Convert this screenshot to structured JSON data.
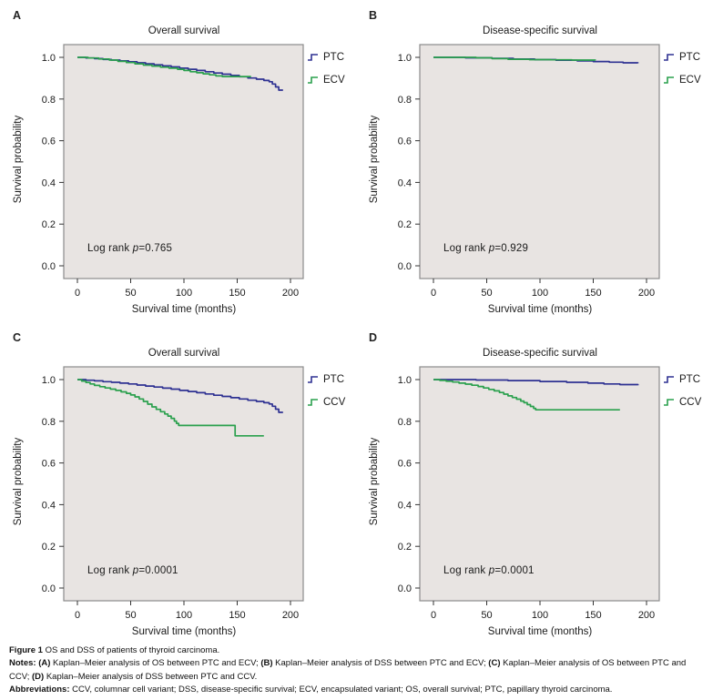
{
  "style": {
    "navy": "#2e3192",
    "green": "#2aa04d",
    "plot_bg": "#e8e4e2",
    "plot_border": "#8b8b8b",
    "tick_color": "#333333",
    "text_color": "#1a1a1a"
  },
  "chart_data": [
    {
      "type": "line",
      "subtype": "kaplan-meier-step",
      "panel_label": "A",
      "title": "Overall survival",
      "xlabel": "Survival time (months)",
      "ylabel": "Survival probability",
      "xlim": [
        0,
        210
      ],
      "ylim": [
        0,
        1.05
      ],
      "grid": false,
      "legend_position": "right",
      "x_ticks": [
        {
          "value": 0,
          "label": "0"
        },
        {
          "value": 50,
          "label": "50"
        },
        {
          "value": 100,
          "label": "100"
        },
        {
          "value": 150,
          "label": "150"
        },
        {
          "value": 200,
          "label": "200"
        }
      ],
      "y_ticks": [
        {
          "value": 1.0,
          "label": "1.0"
        },
        {
          "value": 0.8,
          "label": "0.8"
        },
        {
          "value": 0.6,
          "label": "0.6"
        },
        {
          "value": 0.4,
          "label": "0.4"
        },
        {
          "value": 0.2,
          "label": "0.2"
        },
        {
          "value": 0.0,
          "label": "0.0"
        }
      ],
      "log_rank": {
        "pre": "Log rank ",
        "p": "p",
        "value": "=0.765"
      },
      "series": [
        {
          "name": "PTC",
          "color": "#2e3192",
          "points": [
            [
              0,
              1.0
            ],
            [
              8,
              0.997
            ],
            [
              16,
              0.994
            ],
            [
              24,
              0.99
            ],
            [
              32,
              0.987
            ],
            [
              40,
              0.983
            ],
            [
              48,
              0.979
            ],
            [
              56,
              0.974
            ],
            [
              64,
              0.969
            ],
            [
              72,
              0.964
            ],
            [
              80,
              0.959
            ],
            [
              88,
              0.954
            ],
            [
              96,
              0.948
            ],
            [
              104,
              0.943
            ],
            [
              112,
              0.937
            ],
            [
              120,
              0.931
            ],
            [
              128,
              0.925
            ],
            [
              136,
              0.919
            ],
            [
              144,
              0.913
            ],
            [
              152,
              0.907
            ],
            [
              160,
              0.901
            ],
            [
              168,
              0.895
            ],
            [
              175,
              0.889
            ],
            [
              180,
              0.883
            ],
            [
              183,
              0.872
            ],
            [
              186,
              0.858
            ],
            [
              189,
              0.843
            ],
            [
              193,
              0.843
            ]
          ]
        },
        {
          "name": "ECV",
          "color": "#2aa04d",
          "points": [
            [
              0,
              1.0
            ],
            [
              10,
              0.997
            ],
            [
              20,
              0.992
            ],
            [
              30,
              0.987
            ],
            [
              38,
              0.981
            ],
            [
              46,
              0.975
            ],
            [
              54,
              0.969
            ],
            [
              62,
              0.963
            ],
            [
              70,
              0.958
            ],
            [
              78,
              0.953
            ],
            [
              86,
              0.948
            ],
            [
              94,
              0.943
            ],
            [
              100,
              0.937
            ],
            [
              106,
              0.931
            ],
            [
              112,
              0.926
            ],
            [
              118,
              0.921
            ],
            [
              124,
              0.916
            ],
            [
              130,
              0.911
            ],
            [
              136,
              0.908
            ],
            [
              163,
              0.908
            ]
          ]
        }
      ]
    },
    {
      "type": "line",
      "subtype": "kaplan-meier-step",
      "panel_label": "B",
      "title": "Disease-specific survival",
      "xlabel": "Survival time (months)",
      "ylabel": "Survival probability",
      "xlim": [
        0,
        210
      ],
      "ylim": [
        0,
        1.05
      ],
      "grid": false,
      "legend_position": "right",
      "x_ticks": [
        {
          "value": 0,
          "label": "0"
        },
        {
          "value": 50,
          "label": "50"
        },
        {
          "value": 100,
          "label": "100"
        },
        {
          "value": 150,
          "label": "150"
        },
        {
          "value": 200,
          "label": "200"
        }
      ],
      "y_ticks": [
        {
          "value": 1.0,
          "label": "1.0"
        },
        {
          "value": 0.8,
          "label": "0.8"
        },
        {
          "value": 0.6,
          "label": "0.6"
        },
        {
          "value": 0.4,
          "label": "0.4"
        },
        {
          "value": 0.2,
          "label": "0.2"
        },
        {
          "value": 0.0,
          "label": "0.0"
        }
      ],
      "log_rank": {
        "pre": "Log rank ",
        "p": "p",
        "value": "=0.929"
      },
      "series": [
        {
          "name": "PTC",
          "color": "#2e3192",
          "points": [
            [
              0,
              1.0
            ],
            [
              30,
              0.998
            ],
            [
              55,
              0.995
            ],
            [
              75,
              0.992
            ],
            [
              95,
              0.989
            ],
            [
              115,
              0.986
            ],
            [
              135,
              0.983
            ],
            [
              150,
              0.98
            ],
            [
              165,
              0.977
            ],
            [
              178,
              0.974
            ],
            [
              192,
              0.972
            ]
          ]
        },
        {
          "name": "ECV",
          "color": "#2aa04d",
          "points": [
            [
              0,
              1.0
            ],
            [
              40,
              0.998
            ],
            [
              55,
              0.994
            ],
            [
              70,
              0.991
            ],
            [
              90,
              0.989
            ],
            [
              110,
              0.988
            ],
            [
              130,
              0.987
            ],
            [
              152,
              0.986
            ]
          ]
        }
      ]
    },
    {
      "type": "line",
      "subtype": "kaplan-meier-step",
      "panel_label": "C",
      "title": "Overall survival",
      "xlabel": "Survival time (months)",
      "ylabel": "Survival probability",
      "xlim": [
        0,
        210
      ],
      "ylim": [
        0,
        1.05
      ],
      "grid": false,
      "legend_position": "right",
      "x_ticks": [
        {
          "value": 0,
          "label": "0"
        },
        {
          "value": 50,
          "label": "50"
        },
        {
          "value": 100,
          "label": "100"
        },
        {
          "value": 150,
          "label": "150"
        },
        {
          "value": 200,
          "label": "200"
        }
      ],
      "y_ticks": [
        {
          "value": 1.0,
          "label": "1.0"
        },
        {
          "value": 0.8,
          "label": "0.8"
        },
        {
          "value": 0.6,
          "label": "0.6"
        },
        {
          "value": 0.4,
          "label": "0.4"
        },
        {
          "value": 0.2,
          "label": "0.2"
        },
        {
          "value": 0.0,
          "label": "0.0"
        }
      ],
      "log_rank": {
        "pre": "Log rank ",
        "p": "p",
        "value": "=0.0001"
      },
      "series": [
        {
          "name": "PTC",
          "color": "#2e3192",
          "points": [
            [
              0,
              1.0
            ],
            [
              8,
              0.997
            ],
            [
              16,
              0.994
            ],
            [
              24,
              0.99
            ],
            [
              32,
              0.987
            ],
            [
              40,
              0.983
            ],
            [
              48,
              0.979
            ],
            [
              56,
              0.974
            ],
            [
              64,
              0.969
            ],
            [
              72,
              0.964
            ],
            [
              80,
              0.959
            ],
            [
              88,
              0.954
            ],
            [
              96,
              0.948
            ],
            [
              104,
              0.943
            ],
            [
              112,
              0.937
            ],
            [
              120,
              0.931
            ],
            [
              128,
              0.925
            ],
            [
              136,
              0.919
            ],
            [
              144,
              0.913
            ],
            [
              152,
              0.907
            ],
            [
              160,
              0.901
            ],
            [
              168,
              0.895
            ],
            [
              175,
              0.889
            ],
            [
              180,
              0.883
            ],
            [
              183,
              0.872
            ],
            [
              186,
              0.858
            ],
            [
              189,
              0.843
            ],
            [
              193,
              0.843
            ]
          ]
        },
        {
          "name": "CCV",
          "color": "#2aa04d",
          "points": [
            [
              0,
              1.0
            ],
            [
              4,
              0.993
            ],
            [
              8,
              0.986
            ],
            [
              12,
              0.979
            ],
            [
              16,
              0.972
            ],
            [
              21,
              0.966
            ],
            [
              26,
              0.96
            ],
            [
              31,
              0.954
            ],
            [
              36,
              0.948
            ],
            [
              41,
              0.941
            ],
            [
              46,
              0.934
            ],
            [
              50,
              0.926
            ],
            [
              54,
              0.917
            ],
            [
              58,
              0.907
            ],
            [
              62,
              0.895
            ],
            [
              66,
              0.882
            ],
            [
              70,
              0.869
            ],
            [
              74,
              0.857
            ],
            [
              78,
              0.846
            ],
            [
              82,
              0.835
            ],
            [
              85,
              0.825
            ],
            [
              88,
              0.814
            ],
            [
              91,
              0.801
            ],
            [
              93,
              0.79
            ],
            [
              95,
              0.78
            ],
            [
              148,
              0.73
            ],
            [
              175,
              0.73
            ]
          ]
        }
      ]
    },
    {
      "type": "line",
      "subtype": "kaplan-meier-step",
      "panel_label": "D",
      "title": "Disease-specific survival",
      "xlabel": "Survival time (months)",
      "ylabel": "Survival probability",
      "xlim": [
        0,
        210
      ],
      "ylim": [
        0,
        1.05
      ],
      "grid": false,
      "legend_position": "right",
      "x_ticks": [
        {
          "value": 0,
          "label": "0"
        },
        {
          "value": 50,
          "label": "50"
        },
        {
          "value": 100,
          "label": "100"
        },
        {
          "value": 150,
          "label": "150"
        },
        {
          "value": 200,
          "label": "200"
        }
      ],
      "y_ticks": [
        {
          "value": 1.0,
          "label": "1.0"
        },
        {
          "value": 0.8,
          "label": "0.8"
        },
        {
          "value": 0.6,
          "label": "0.6"
        },
        {
          "value": 0.4,
          "label": "0.4"
        },
        {
          "value": 0.2,
          "label": "0.2"
        },
        {
          "value": 0.0,
          "label": "0.0"
        }
      ],
      "log_rank": {
        "pre": "Log rank ",
        "p": "p",
        "value": "=0.0001"
      },
      "series": [
        {
          "name": "PTC",
          "color": "#2e3192",
          "points": [
            [
              0,
              1.0
            ],
            [
              40,
              0.998
            ],
            [
              70,
              0.995
            ],
            [
              100,
              0.991
            ],
            [
              125,
              0.987
            ],
            [
              145,
              0.983
            ],
            [
              160,
              0.979
            ],
            [
              175,
              0.976
            ],
            [
              192,
              0.973
            ]
          ]
        },
        {
          "name": "CCV",
          "color": "#2aa04d",
          "points": [
            [
              0,
              1.0
            ],
            [
              6,
              0.996
            ],
            [
              12,
              0.992
            ],
            [
              18,
              0.988
            ],
            [
              24,
              0.983
            ],
            [
              30,
              0.978
            ],
            [
              36,
              0.973
            ],
            [
              42,
              0.967
            ],
            [
              47,
              0.96
            ],
            [
              52,
              0.953
            ],
            [
              57,
              0.946
            ],
            [
              62,
              0.938
            ],
            [
              66,
              0.93
            ],
            [
              70,
              0.922
            ],
            [
              74,
              0.914
            ],
            [
              78,
              0.906
            ],
            [
              82,
              0.897
            ],
            [
              85,
              0.889
            ],
            [
              88,
              0.88
            ],
            [
              91,
              0.871
            ],
            [
              94,
              0.862
            ],
            [
              96,
              0.855
            ],
            [
              175,
              0.855
            ]
          ]
        }
      ]
    }
  ],
  "caption": {
    "lines": [
      [
        {
          "t": "Figure 1",
          "b": 1
        },
        {
          "t": " OS and DSS of patients of thyroid carcinoma.",
          "b": 0
        }
      ],
      [
        {
          "t": "Notes:",
          "b": 1
        },
        {
          "t": " ",
          "b": 0
        },
        {
          "t": "(A)",
          "b": 1
        },
        {
          "t": " Kaplan–Meier analysis of OS between PTC and ECV; ",
          "b": 0
        },
        {
          "t": "(B)",
          "b": 1
        },
        {
          "t": " Kaplan–Meier analysis of DSS between PTC and ECV; ",
          "b": 0
        },
        {
          "t": "(C)",
          "b": 1
        },
        {
          "t": " Kaplan–Meier analysis of OS between PTC and CCV; ",
          "b": 0
        },
        {
          "t": "(D)",
          "b": 1
        },
        {
          "t": " Kaplan–Meier analysis of DSS between PTC and CCV.",
          "b": 0
        }
      ],
      [
        {
          "t": "Abbreviations:",
          "b": 1
        },
        {
          "t": " CCV, columnar cell variant; DSS, disease-specific survival; ECV, encapsulated variant; OS, overall survival; PTC, papillary thyroid carcinoma.",
          "b": 0
        }
      ]
    ]
  }
}
